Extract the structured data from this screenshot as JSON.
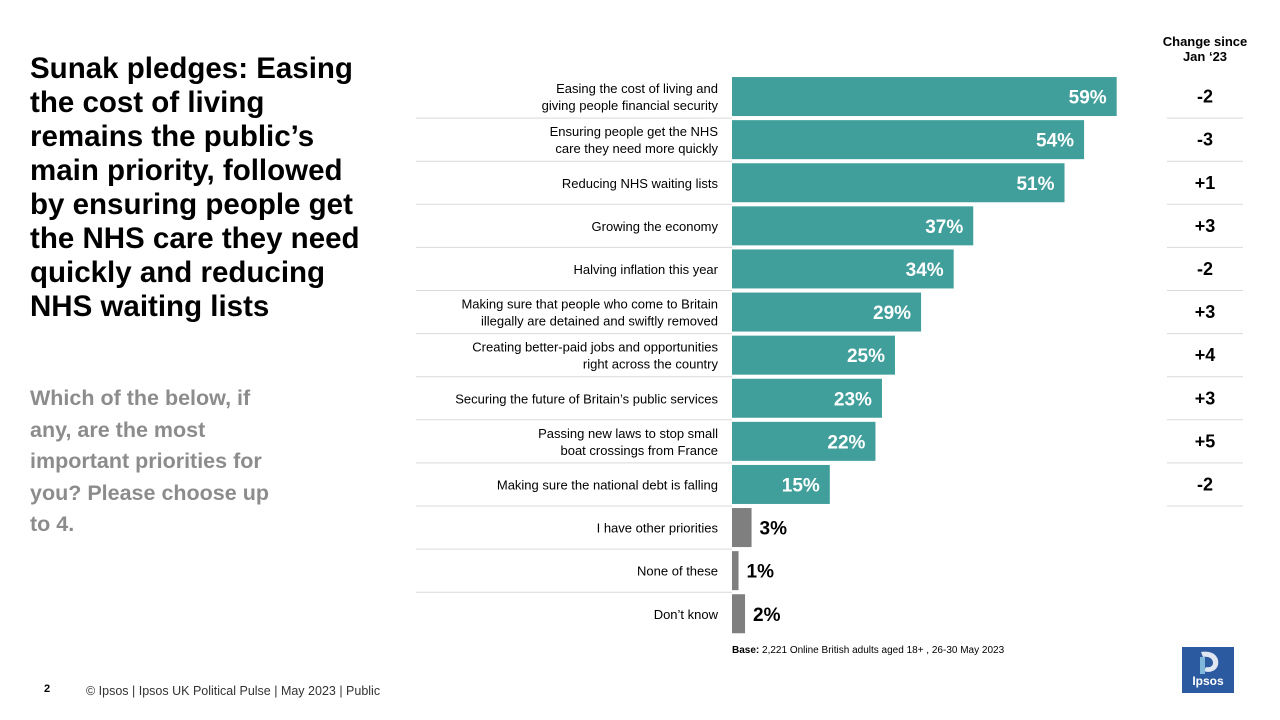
{
  "headline": "Sunak pledges: Easing the cost of living remains the public’s main priority, followed by ensuring people get the NHS care they need quickly and reducing NHS  waiting lists",
  "question": "Which of the below, if any, are the most important priorities for you? Please choose up to 4.",
  "change_header": "Change since Jan ‘23",
  "base_label": "Base:",
  "base_text": "2,221 Online British adults aged 18+ , 26-30 May 2023",
  "footer": {
    "page_number": "2",
    "text": "© Ipsos |  Ipsos UK Political Pulse | May 2023 | Public"
  },
  "logo": {
    "text": "Ipsos",
    "color": "#2c5aa0"
  },
  "colors": {
    "primary_bar": "#409e9b",
    "other_bar": "#7f7f7f",
    "divider": "#d9d9d9"
  },
  "chart_data": {
    "type": "bar",
    "orientation": "horizontal",
    "unit": "%",
    "xlim": [
      0,
      100
    ],
    "grid": false,
    "categories": [
      [
        "Easing the cost of living and",
        "giving people financial security"
      ],
      [
        "Ensuring people get the NHS",
        "care they need more quickly"
      ],
      [
        "Reducing NHS waiting lists"
      ],
      [
        "Growing the economy"
      ],
      [
        "Halving inflation this year"
      ],
      [
        "Making sure that people who come to Britain",
        "illegally are detained and swiftly removed"
      ],
      [
        "Creating better-paid jobs and opportunities",
        "right across the country"
      ],
      [
        "Securing the future of Britain’s public services"
      ],
      [
        "Passing new laws to stop small",
        "boat crossings from France"
      ],
      [
        "Making sure the national debt is falling"
      ],
      [
        "I have other priorities"
      ],
      [
        "None of these"
      ],
      [
        "Don’t know"
      ]
    ],
    "values": [
      59,
      54,
      51,
      37,
      34,
      29,
      25,
      23,
      22,
      15,
      3,
      1,
      2
    ],
    "value_labels": [
      "59%",
      "54%",
      "51%",
      "37%",
      "34%",
      "29%",
      "25%",
      "23%",
      "22%",
      "15%",
      "3%",
      "1%",
      "2%"
    ],
    "bar_group": [
      "pledge",
      "pledge",
      "pledge",
      "pledge",
      "pledge",
      "pledge",
      "pledge",
      "pledge",
      "pledge",
      "pledge",
      "other",
      "other",
      "other"
    ],
    "change_since_jan_23": [
      "-2",
      "-3",
      "+1",
      "+3",
      "-2",
      "+3",
      "+4",
      "+3",
      "+5",
      "-2"
    ]
  }
}
